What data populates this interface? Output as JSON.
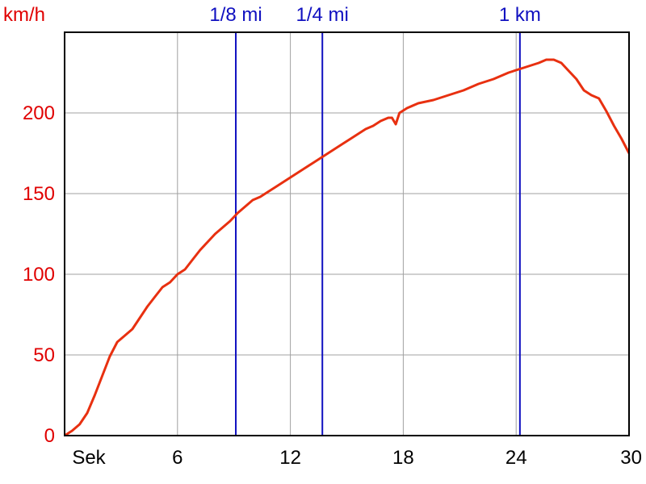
{
  "chart_data": {
    "type": "line",
    "ylabel": "km/h",
    "xlabel": "Sek",
    "xlim": [
      0,
      30
    ],
    "ylim": [
      0,
      250
    ],
    "x_ticks": [
      6,
      12,
      18,
      24,
      30
    ],
    "y_ticks": [
      0,
      50,
      100,
      150,
      200
    ],
    "grid": true,
    "colors": {
      "series": "#e83010",
      "axis_labels": "#e00000",
      "markers": "#1010c0",
      "grid": "#a0a0a0"
    },
    "markers": [
      {
        "label": "1/8 mi",
        "x": 9.1
      },
      {
        "label": "1/4 mi",
        "x": 13.7
      },
      {
        "label": "1 km",
        "x": 24.2
      }
    ],
    "series": [
      {
        "x": [
          0,
          0.4,
          0.8,
          1.2,
          1.6,
          2.0,
          2.4,
          2.8,
          3.2,
          3.6,
          4.0,
          4.4,
          4.8,
          5.2,
          5.6,
          6.0,
          6.4,
          6.8,
          7.2,
          7.6,
          8.0,
          8.4,
          8.8,
          9.2,
          9.6,
          10.0,
          10.4,
          10.8,
          11.2,
          11.6,
          12.0,
          12.4,
          12.8,
          13.2,
          13.6,
          14.0,
          14.4,
          14.8,
          15.2,
          15.6,
          16.0,
          16.4,
          16.8,
          17.2,
          17.4,
          17.6,
          17.8,
          18.2,
          18.8,
          19.6,
          20.4,
          21.2,
          22.0,
          22.8,
          23.6,
          24.4,
          25.2,
          25.6,
          26.0,
          26.4,
          26.8,
          27.2,
          27.6,
          28.0,
          28.4,
          28.8,
          29.2,
          29.6,
          30.0
        ],
        "values": [
          0,
          3,
          7,
          14,
          25,
          37,
          49,
          58,
          62,
          66,
          73,
          80,
          86,
          92,
          95,
          100,
          103,
          109,
          115,
          120,
          125,
          129,
          133,
          138,
          142,
          146,
          148,
          151,
          154,
          157,
          160,
          163,
          166,
          169,
          172,
          175,
          178,
          181,
          184,
          187,
          190,
          192,
          195,
          197,
          197,
          193,
          200,
          203,
          206,
          208,
          211,
          214,
          218,
          221,
          225,
          228,
          231,
          233,
          233,
          231,
          226,
          221,
          214,
          211,
          209,
          201,
          192,
          184,
          175
        ]
      }
    ]
  }
}
